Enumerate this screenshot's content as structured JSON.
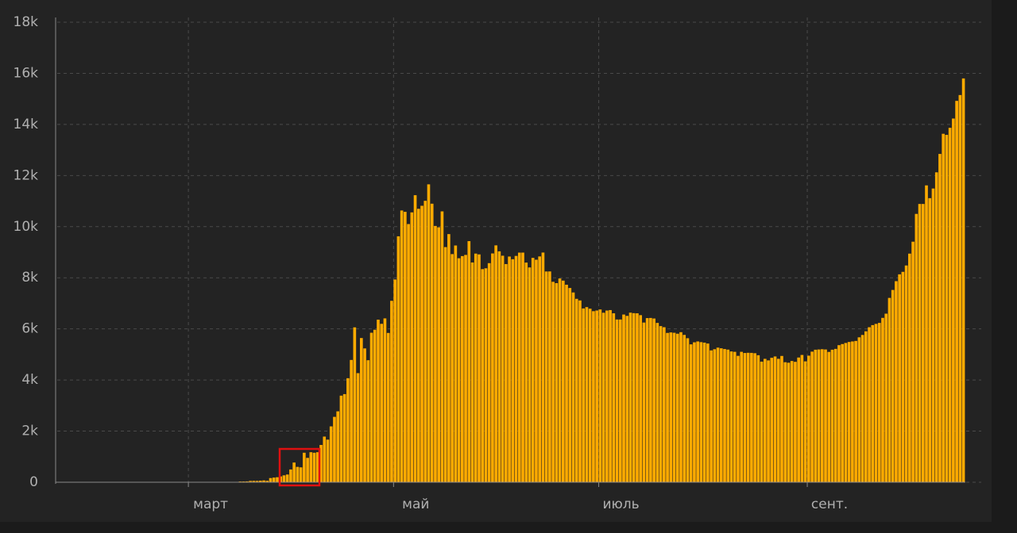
{
  "chart_data": {
    "type": "bar",
    "color": "#ffab00",
    "grid": true,
    "ylim": [
      0,
      18000
    ],
    "yticks": [
      0,
      {
        "value": 2000,
        "label": "2k"
      },
      {
        "value": 4000,
        "label": "4k"
      },
      {
        "value": 6000,
        "label": "6k"
      },
      {
        "value": 8000,
        "label": "8k"
      },
      {
        "value": 10000,
        "label": "10k"
      },
      {
        "value": 12000,
        "label": "12k"
      },
      {
        "value": 14000,
        "label": "14k"
      },
      {
        "value": 16000,
        "label": "16k"
      },
      {
        "value": 18000,
        "label": "18k"
      }
    ],
    "categories": [
      null,
      null,
      null,
      null,
      null,
      null,
      null,
      null,
      null,
      null,
      null,
      null,
      null,
      null,
      null,
      null,
      null,
      null,
      null,
      null,
      null,
      null,
      null,
      null,
      null,
      null,
      null,
      null,
      null,
      null,
      null,
      null,
      null,
      null,
      null,
      null,
      null,
      null,
      null,
      "март",
      null,
      null,
      null,
      null,
      null,
      null,
      null,
      null,
      null,
      null,
      null,
      null,
      null,
      null,
      null,
      null,
      null,
      null,
      null,
      null,
      null,
      null,
      null,
      null,
      null,
      null,
      null,
      null,
      null,
      null,
      null,
      null,
      null,
      null,
      null,
      null,
      null,
      null,
      null,
      null,
      null,
      null,
      null,
      null,
      null,
      null,
      null,
      null,
      null,
      null,
      null,
      null,
      null,
      null,
      null,
      null,
      null,
      null,
      null,
      null,
      "май",
      null,
      null,
      null,
      null,
      null,
      null,
      null,
      null,
      null,
      null,
      null,
      null,
      null,
      null,
      null,
      null,
      null,
      null,
      null,
      null,
      null,
      null,
      null,
      null,
      null,
      null,
      null,
      null,
      null,
      null,
      null,
      null,
      null,
      null,
      null,
      null,
      null,
      null,
      null,
      null,
      null,
      null,
      null,
      null,
      null,
      null,
      null,
      null,
      null,
      null,
      null,
      null,
      null,
      null,
      null,
      null,
      null,
      null,
      null,
      null,
      "июль",
      null,
      null,
      null,
      null,
      null,
      null,
      null,
      null,
      null,
      null,
      null,
      null,
      null,
      null,
      null,
      null,
      null,
      null,
      null,
      null,
      null,
      null,
      null,
      null,
      null,
      null,
      null,
      null,
      null,
      null,
      null,
      null,
      null,
      null,
      null,
      null,
      null,
      null,
      null,
      null,
      null,
      null,
      null,
      null,
      null,
      null,
      null,
      null,
      null,
      null,
      null,
      null,
      null,
      null,
      null,
      null,
      null,
      null,
      null,
      null,
      null,
      "сент.",
      null,
      null,
      null,
      null,
      null,
      null,
      null,
      null,
      null,
      null,
      null,
      null,
      null,
      null,
      null,
      null,
      null,
      null,
      null,
      null,
      null,
      null,
      null,
      null,
      null,
      null,
      null,
      null,
      null,
      null,
      null,
      null,
      null,
      null,
      null,
      null,
      null,
      null,
      null,
      null,
      null,
      null,
      null,
      null,
      null,
      null
    ],
    "values": [
      0,
      0,
      0,
      0,
      0,
      0,
      0,
      0,
      0,
      2,
      0,
      0,
      0,
      0,
      0,
      0,
      0,
      0,
      0,
      0,
      0,
      0,
      0,
      0,
      0,
      0,
      0,
      0,
      0,
      0,
      0,
      0,
      0,
      0,
      0,
      0,
      0,
      0,
      0,
      0,
      0,
      0,
      1,
      0,
      0,
      10,
      0,
      3,
      3,
      8,
      6,
      14,
      11,
      4,
      29,
      30,
      33,
      52,
      54,
      53,
      61,
      71,
      57,
      163,
      182,
      196,
      228,
      270,
      302,
      500,
      771,
      601,
      582,
      1154,
      953,
      1175,
      1154,
      1175,
      1459,
      1786,
      1667,
      2186,
      2558,
      2774,
      3388,
      3448,
      4070,
      4785,
      6060,
      4268,
      5642,
      5236,
      4774,
      5849,
      5966,
      6361,
      6198,
      6411,
      5841,
      7099,
      7933,
      9623,
      10633,
      10581,
      10102,
      10559,
      11231,
      10699,
      10817,
      11012,
      11656,
      10899,
      10028,
      9974,
      10598,
      9200,
      9709,
      8926,
      9263,
      8764,
      8849,
      8894,
      9434,
      8599,
      8946,
      8915,
      8338,
      8371,
      8572,
      8952,
      9268,
      9035,
      8863,
      8536,
      8831,
      8726,
      8855,
      8984,
      8985,
      8595,
      8404,
      8779,
      8706,
      8835,
      8987,
      8246,
      8248,
      7843,
      7790,
      7972,
      7889,
      7728,
      7600,
      7425,
      7176,
      7113,
      6800,
      6852,
      6791,
      6693,
      6719,
      6760,
      6632,
      6718,
      6736,
      6611,
      6368,
      6368,
      6562,
      6509,
      6635,
      6615,
      6611,
      6537,
      6248,
      6422,
      6428,
      6406,
      6234,
      6109,
      6065,
      5842,
      5862,
      5848,
      5811,
      5871,
      5765,
      5635,
      5395,
      5475,
      5509,
      5482,
      5462,
      5427,
      5159,
      5204,
      5267,
      5241,
      5212,
      5189,
      5118,
      5102,
      4945,
      5102,
      5057,
      5065,
      5061,
      5048,
      4969,
      4718,
      4828,
      4767,
      4870,
      4921,
      4829,
      4941,
      4696,
      4676,
      4744,
      4711,
      4880,
      4980,
      4729,
      4952,
      5110,
      5185,
      5195,
      5205,
      5195,
      5099,
      5185,
      5218,
      5363,
      5406,
      5449,
      5488,
      5509,
      5529,
      5670,
      5762,
      5905,
      6065,
      6148,
      6196,
      6234,
      6431,
      6595,
      7212,
      7523,
      7867,
      8135,
      8232,
      8481,
      8945,
      9412,
      10499,
      10888,
      10888,
      11615,
      11115,
      11493,
      12126,
      12846,
      13634,
      13592,
      13868,
      14231,
      14922,
      15150,
      15800
    ]
  }
}
